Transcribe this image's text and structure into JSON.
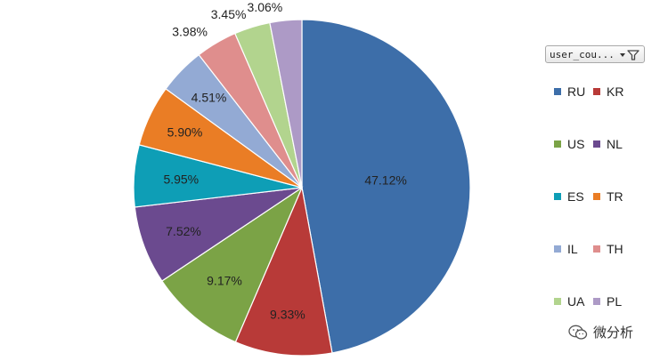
{
  "chart_data": {
    "type": "pie",
    "title": "",
    "slices": [
      {
        "label": "RU",
        "value": 47.12,
        "display": "47.12%",
        "color": "#3d6ea9"
      },
      {
        "label": "KR",
        "value": 9.33,
        "display": "9.33%",
        "color": "#b83a38"
      },
      {
        "label": "US",
        "value": 9.17,
        "display": "9.17%",
        "color": "#7ba346"
      },
      {
        "label": "NL",
        "value": 7.52,
        "display": "7.52%",
        "color": "#6b4a8f"
      },
      {
        "label": "ES",
        "value": 5.95,
        "display": "5.95%",
        "color": "#0e9eb6"
      },
      {
        "label": "TR",
        "value": 5.9,
        "display": "5.90%",
        "color": "#ea7d25"
      },
      {
        "label": "IL",
        "value": 4.51,
        "display": "4.51%",
        "color": "#93aad4"
      },
      {
        "label": "TH",
        "value": 3.98,
        "display": "3.98%",
        "color": "#df8e8d"
      },
      {
        "label": "UA",
        "value": 3.45,
        "display": "3.45%",
        "color": "#b2d48e"
      },
      {
        "label": "PL",
        "value": 3.06,
        "display": "3.06%",
        "color": "#ad9ac6"
      }
    ],
    "legend_position": "right"
  },
  "filter_field": {
    "label": "user_cou...",
    "icon": "dropdown-filter-icon"
  },
  "watermark": {
    "text": "微分析",
    "icon": "wechat-icon"
  }
}
